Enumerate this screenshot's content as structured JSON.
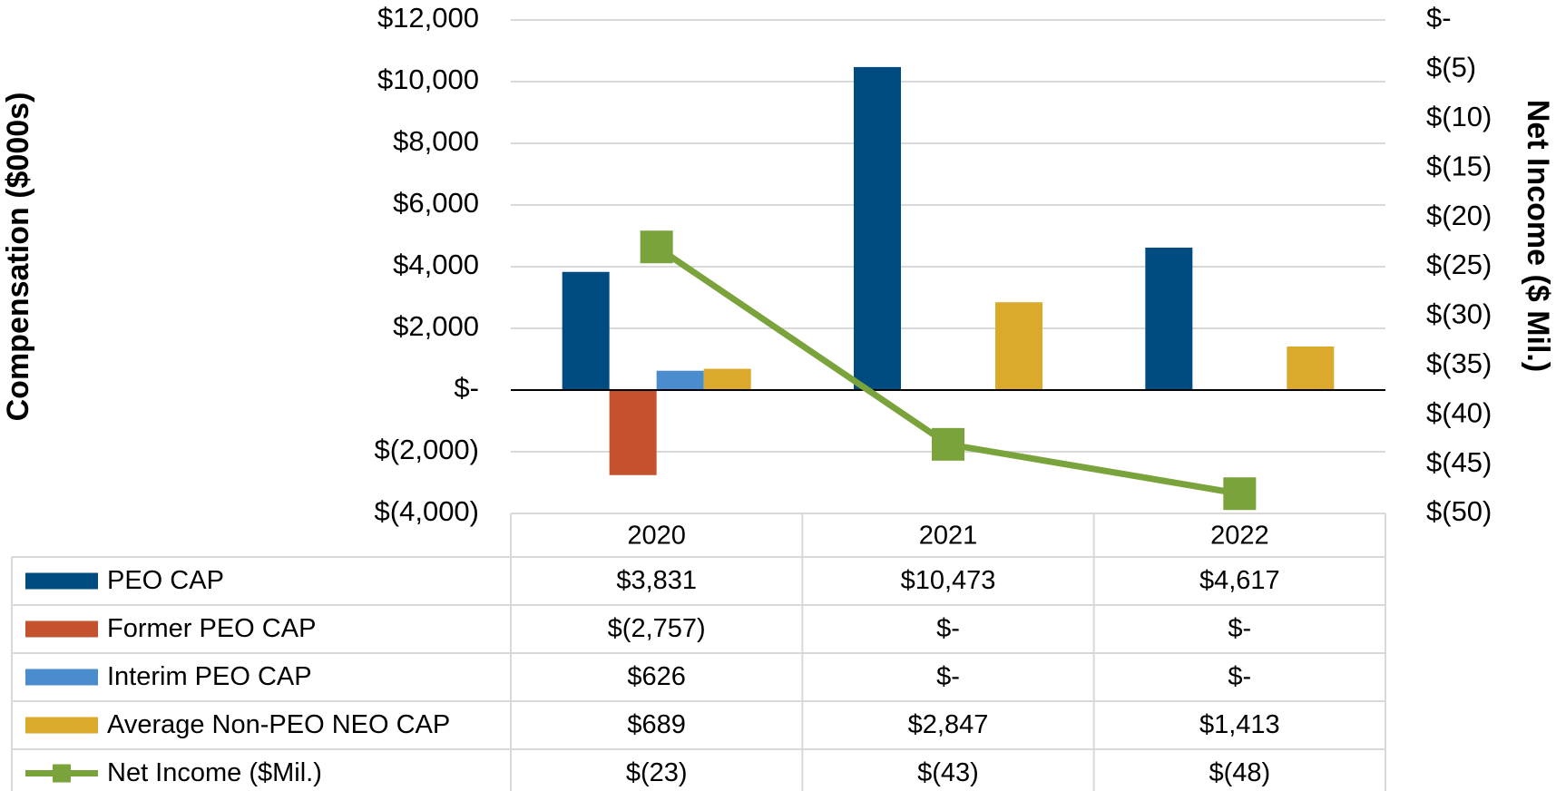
{
  "chart_data": {
    "type": "bar",
    "categories": [
      "2020",
      "2021",
      "2022"
    ],
    "left_axis": {
      "title": "Compensation ($000s)",
      "ylim": [
        -4000,
        12000
      ],
      "ticks": [
        12000,
        10000,
        8000,
        6000,
        4000,
        2000,
        0,
        -2000,
        -4000
      ],
      "tick_labels": [
        "$12,000",
        "$10,000",
        "$8,000",
        "$6,000",
        "$4,000",
        "$2,000",
        "$-",
        "$(2,000)",
        "$(4,000)"
      ]
    },
    "right_axis": {
      "title": "Net Income ($ Mil.)",
      "ylim": [
        -50,
        0
      ],
      "ticks": [
        0,
        -5,
        -10,
        -15,
        -20,
        -25,
        -30,
        -35,
        -40,
        -45,
        -50
      ],
      "tick_labels": [
        "$-",
        "$(5)",
        "$(10)",
        "$(15)",
        "$(20)",
        "$(25)",
        "$(30)",
        "$(35)",
        "$(40)",
        "$(45)",
        "$(50)"
      ]
    },
    "series": [
      {
        "name": "PEO CAP",
        "type": "bar",
        "axis": "left",
        "color": "#004b7f",
        "values": [
          3831,
          10473,
          4617
        ],
        "display": [
          "$3,831",
          "$10,473",
          "$4,617"
        ]
      },
      {
        "name": "Former PEO CAP",
        "type": "bar",
        "axis": "left",
        "color": "#c5522f",
        "values": [
          -2757,
          0,
          0
        ],
        "display": [
          "$(2,757)",
          "$-",
          "$-"
        ]
      },
      {
        "name": "Interim PEO CAP",
        "type": "bar",
        "axis": "left",
        "color": "#4a8ccd",
        "values": [
          626,
          0,
          0
        ],
        "display": [
          "$626",
          "$-",
          "$-"
        ]
      },
      {
        "name": "Average Non-PEO NEO CAP",
        "type": "bar",
        "axis": "left",
        "color": "#dba92b",
        "values": [
          689,
          2847,
          1413
        ],
        "display": [
          "$689",
          "$2,847",
          "$1,413"
        ]
      },
      {
        "name": "Net Income ($Mil.)",
        "type": "line",
        "axis": "right",
        "color": "#7ba33b",
        "values": [
          -23,
          -43,
          -48
        ],
        "display": [
          "$(23)",
          "$(43)",
          "$(48)"
        ]
      }
    ],
    "grid": true,
    "legend": "data-table-bottom"
  }
}
